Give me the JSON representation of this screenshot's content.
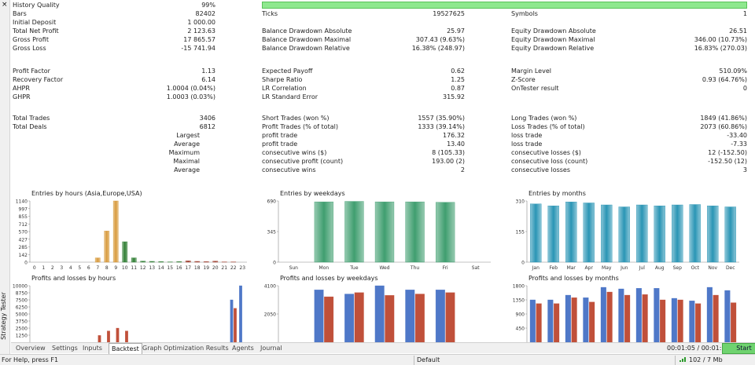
{
  "window": {
    "close_glyph": "×",
    "side_title": "Strategy Tester"
  },
  "report": {
    "hq": {
      "label": "History Quality",
      "value": "99%"
    },
    "rows1": [
      {
        "l1": "Bars",
        "v1": "82402",
        "l2": "Ticks",
        "v2": "19527625",
        "l3": "Symbols",
        "v3": "1"
      },
      {
        "l1": "Initial Deposit",
        "v1": "1 000.00",
        "l2": "",
        "v2": "",
        "l3": "",
        "v3": ""
      },
      {
        "l1": "Total Net Profit",
        "v1": "2 123.63",
        "l2": "Balance Drawdown Absolute",
        "v2": "25.97",
        "l3": "Equity Drawdown Absolute",
        "v3": "26.51"
      },
      {
        "l1": "Gross Profit",
        "v1": "17 865.57",
        "l2": "Balance Drawdown Maximal",
        "v2": "307.43 (9.63%)",
        "l3": "Equity Drawdown Maximal",
        "v3": "346.00 (10.73%)"
      },
      {
        "l1": "Gross Loss",
        "v1": "-15 741.94",
        "l2": "Balance Drawdown Relative",
        "v2": "16.38% (248.97)",
        "l3": "Equity Drawdown Relative",
        "v3": "16.83% (270.03)"
      }
    ],
    "rows2": [
      {
        "l1": "Profit Factor",
        "v1": "1.13",
        "l2": "Expected Payoff",
        "v2": "0.62",
        "l3": "Margin Level",
        "v3": "510.09%"
      },
      {
        "l1": "Recovery Factor",
        "v1": "6.14",
        "l2": "Sharpe Ratio",
        "v2": "1.25",
        "l3": "Z-Score",
        "v3": "0.93 (64.76%)"
      },
      {
        "l1": "AHPR",
        "v1": "1.0004 (0.04%)",
        "l2": "LR Correlation",
        "v2": "0.87",
        "l3": "OnTester result",
        "v3": "0"
      },
      {
        "l1": "GHPR",
        "v1": "1.0003 (0.03%)",
        "l2": "LR Standard Error",
        "v2": "315.92",
        "l3": "",
        "v3": ""
      }
    ],
    "rows3": [
      {
        "l1": "Total Trades",
        "v1": "3406",
        "l2": "Short Trades (won %)",
        "v2": "1557 (35.90%)",
        "l3": "Long Trades (won %)",
        "v3": "1849 (41.86%)"
      },
      {
        "l1": "Total Deals",
        "v1": "6812",
        "l2": "Profit Trades (% of total)",
        "v2": "1333 (39.14%)",
        "l3": "Loss Trades (% of total)",
        "v3": "2073 (60.86%)"
      },
      {
        "lr1": "Largest",
        "l2": "profit trade",
        "v2": "176.32",
        "l3": "loss trade",
        "v3": "-33.40"
      },
      {
        "lr1": "Average",
        "l2": "profit trade",
        "v2": "13.40",
        "l3": "loss trade",
        "v3": "-7.33"
      },
      {
        "lr1": "Maximum",
        "l2": "consecutive wins ($)",
        "v2": "8 (105.33)",
        "l3": "consecutive losses ($)",
        "v3": "12 (-152.50)"
      },
      {
        "lr1": "Maximal",
        "l2": "consecutive profit (count)",
        "v2": "193.00 (2)",
        "l3": "consecutive loss (count)",
        "v3": "-152.50 (12)"
      },
      {
        "lr1": "Average",
        "l2": "consecutive wins",
        "v2": "2",
        "l3": "consecutive losses",
        "v3": "3"
      }
    ]
  },
  "chart_data": [
    {
      "type": "bar",
      "title": "Entries by hours (Asia,Europe,USA)",
      "categories": [
        "0",
        "1",
        "2",
        "3",
        "4",
        "5",
        "6",
        "7",
        "8",
        "9",
        "10",
        "11",
        "12",
        "13",
        "14",
        "15",
        "16",
        "17",
        "18",
        "19",
        "20",
        "21",
        "22",
        "23"
      ],
      "ytick_labels": [
        "1140",
        "997",
        "855",
        "712",
        "570",
        "427",
        "285",
        "142",
        "0"
      ],
      "ylim": [
        0,
        1140
      ],
      "values": [
        0,
        0,
        0,
        0,
        0,
        0,
        0,
        80,
        580,
        1140,
        380,
        80,
        20,
        15,
        10,
        5,
        10,
        25,
        15,
        10,
        20,
        5,
        5,
        0
      ],
      "colors": [
        "#d89a3c",
        "#d89a3c",
        "#d89a3c",
        "#d89a3c",
        "#d89a3c",
        "#d89a3c",
        "#d89a3c",
        "#d89a3c",
        "#d89a3c",
        "#d89a3c",
        "#2e7d32",
        "#2e7d32",
        "#2e7d32",
        "#2e7d32",
        "#2e7d32",
        "#2e7d32",
        "#2e7d32",
        "#a04030",
        "#a04030",
        "#a04030",
        "#a04030",
        "#a04030",
        "#a04030",
        "#a04030"
      ]
    },
    {
      "type": "bar",
      "title": "Entries by weekdays",
      "categories": [
        "Sun",
        "Mon",
        "Tue",
        "Wed",
        "Thu",
        "Fri",
        "Sat"
      ],
      "ytick_labels": [
        "690",
        "345",
        "0"
      ],
      "ylim": [
        0,
        690
      ],
      "values": [
        0,
        680,
        685,
        680,
        680,
        675,
        0
      ],
      "color": "#3f9e6f"
    },
    {
      "type": "bar",
      "title": "Entries by months",
      "categories": [
        "Jan",
        "Feb",
        "Mar",
        "Apr",
        "May",
        "Jun",
        "Jul",
        "Aug",
        "Sep",
        "Oct",
        "Nov",
        "Dec"
      ],
      "ytick_labels": [
        "310",
        "155",
        "0"
      ],
      "ylim": [
        0,
        310
      ],
      "values": [
        295,
        285,
        305,
        300,
        290,
        280,
        290,
        285,
        290,
        292,
        285,
        280
      ],
      "color": "#2a95b5"
    },
    {
      "type": "bar",
      "title": "Profits and losses by hours",
      "categories": [
        "0",
        "1",
        "2",
        "3",
        "4",
        "5",
        "6",
        "7",
        "8",
        "9",
        "10",
        "11",
        "12",
        "13",
        "14",
        "15",
        "16",
        "17",
        "18",
        "19",
        "20",
        "21",
        "22",
        "23"
      ],
      "ytick_labels": [
        "10000",
        "8750",
        "7500",
        "6250",
        "5000",
        "3750",
        "2500",
        "1250"
      ],
      "ylim": [
        0,
        10000
      ],
      "series": [
        {
          "name": "profit",
          "color": "#4f78c8",
          "values": [
            0,
            0,
            0,
            0,
            0,
            0,
            0,
            0,
            0,
            0,
            0,
            0,
            0,
            0,
            0,
            0,
            0,
            0,
            0,
            0,
            0,
            0,
            7500,
            10000
          ]
        },
        {
          "name": "loss",
          "color": "#c0503a",
          "values": [
            0,
            0,
            0,
            0,
            0,
            0,
            0,
            1200,
            2000,
            2500,
            2000,
            0,
            0,
            0,
            0,
            0,
            0,
            0,
            0,
            0,
            0,
            0,
            6000,
            0
          ]
        }
      ]
    },
    {
      "type": "bar",
      "title": "Profits and losses by weekdays",
      "categories": [
        "Sun",
        "Mon",
        "Tue",
        "Wed",
        "Thu",
        "Fri",
        "Sat"
      ],
      "ytick_labels": [
        "4100",
        "2050"
      ],
      "ylim": [
        0,
        4100
      ],
      "series": [
        {
          "name": "profit",
          "color": "#4f78c8",
          "values": [
            0,
            3800,
            3500,
            4100,
            3800,
            3800,
            0
          ]
        },
        {
          "name": "loss",
          "color": "#c0503a",
          "values": [
            0,
            3300,
            3600,
            3400,
            3500,
            3600,
            0
          ]
        }
      ]
    },
    {
      "type": "bar",
      "title": "Profits and losses by months",
      "categories": [
        "Jan",
        "Feb",
        "Mar",
        "Apr",
        "May",
        "Jun",
        "Jul",
        "Aug",
        "Sep",
        "Oct",
        "Nov",
        "Dec"
      ],
      "ytick_labels": [
        "1800",
        "1350",
        "900",
        "450"
      ],
      "ylim": [
        0,
        1800
      ],
      "series": [
        {
          "name": "profit",
          "color": "#4f78c8",
          "values": [
            1350,
            1350,
            1500,
            1420,
            1750,
            1700,
            1720,
            1720,
            1400,
            1320,
            1750,
            1650
          ]
        },
        {
          "name": "loss",
          "color": "#c0503a",
          "values": [
            1230,
            1230,
            1420,
            1280,
            1600,
            1500,
            1520,
            1350,
            1350,
            1230,
            1500,
            1260
          ]
        }
      ]
    }
  ],
  "tabs": [
    {
      "label": "Overview"
    },
    {
      "label": "Settings"
    },
    {
      "label": "Inputs"
    },
    {
      "label": "Backtest",
      "active": true
    },
    {
      "label": "Graph"
    },
    {
      "label": "Optimization Results"
    },
    {
      "label": "Agents"
    },
    {
      "label": "Journal"
    }
  ],
  "timer": "00:01:05 / 00:01:09",
  "start_label": "Start",
  "status": {
    "help": "For Help, press F1",
    "profile": "Default",
    "memory": "102 / 7 Mb"
  }
}
